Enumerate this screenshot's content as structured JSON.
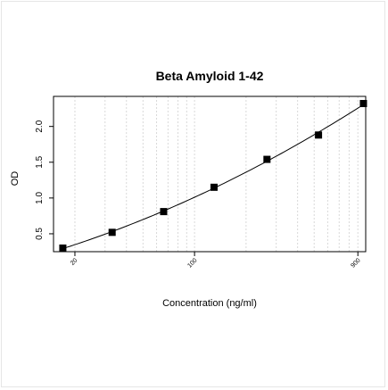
{
  "chart_data": {
    "type": "scatter",
    "title": "Beta Amyloid 1-42",
    "xlabel": "Concentration (ng/ml)",
    "ylabel": "OD",
    "x_scale": "log",
    "xlim": [
      15,
      1000
    ],
    "ylim": [
      0.25,
      2.42
    ],
    "x_ticks": [
      {
        "value": 20,
        "label": "20"
      },
      {
        "value": 100,
        "label": "100"
      },
      {
        "value": 900,
        "label": "900"
      }
    ],
    "y_ticks": [
      {
        "value": 0.5,
        "label": "0.5"
      },
      {
        "value": 1.0,
        "label": "1.0"
      },
      {
        "value": 1.5,
        "label": "1.5"
      },
      {
        "value": 2.0,
        "label": "2.0"
      }
    ],
    "x_grid": [
      20,
      30,
      40,
      50,
      60,
      70,
      80,
      90,
      100,
      200,
      300,
      400,
      500,
      600,
      700,
      800,
      900,
      1000
    ],
    "grid": "vertical dotted",
    "points": [
      {
        "x": 17,
        "y": 0.3
      },
      {
        "x": 33,
        "y": 0.52
      },
      {
        "x": 66,
        "y": 0.81
      },
      {
        "x": 130,
        "y": 1.15
      },
      {
        "x": 265,
        "y": 1.54
      },
      {
        "x": 530,
        "y": 1.88
      },
      {
        "x": 970,
        "y": 2.32
      }
    ],
    "fit_curve": true,
    "colors": {
      "marker": "#000000",
      "curve": "#000000",
      "grid": "#d9d9d9",
      "frame": "#e6e6e6"
    }
  }
}
